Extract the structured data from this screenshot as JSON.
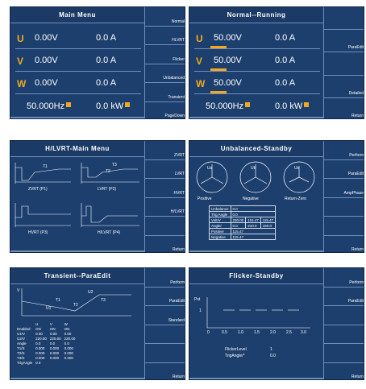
{
  "screens": {
    "main_menu": {
      "title": "Main Menu",
      "rows": [
        {
          "phase": "U",
          "voltage": "0.00V",
          "current": "0.0 A"
        },
        {
          "phase": "V",
          "voltage": "0.00V",
          "current": "0.0 A"
        },
        {
          "phase": "W",
          "voltage": "0.00V",
          "current": "0.0 A"
        }
      ],
      "frequency": "50.000Hz",
      "power": "0.0 kW",
      "side_buttons": [
        "Normal",
        "HLVRT",
        "Flicker",
        "Unbalanced",
        "Transient",
        "PageDown"
      ]
    },
    "normal_running": {
      "title": "Normal--Running",
      "rows": [
        {
          "phase": "U",
          "voltage": "50.00V",
          "current": "0.0 A"
        },
        {
          "phase": "V",
          "voltage": "50.00V",
          "current": "0.0 A"
        },
        {
          "phase": "W",
          "voltage": "50.00V",
          "current": "0.0 A"
        }
      ],
      "frequency": "50.000Hz",
      "power": "0.0 kW",
      "side_buttons": [
        "",
        "ParaEdit",
        "",
        "Detailed",
        "Return"
      ]
    },
    "hlvrt_main": {
      "title": "H/LVRT-Main Menu",
      "graph_labels": [
        "ZVRT (P1)",
        "LVRT (P2)",
        "HVRT (P3)",
        "H/LVRT (P4)"
      ],
      "t_labels": [
        "T1",
        "T2",
        "T3"
      ],
      "side_buttons": [
        "ZVRT",
        "LVRT",
        "HVRT",
        "H/LVRT",
        "",
        "Return"
      ]
    },
    "unbalanced": {
      "title": "Unbalanced-Standby",
      "circle_labels": [
        "Positive",
        "Negative",
        "Return-Zero"
      ],
      "phasor_labels": [
        "Ua",
        "Ub",
        "Uc"
      ],
      "table": [
        [
          "Unbalance",
          "0.0"
        ],
        [
          "Trig Angle",
          "0.0"
        ],
        [
          "Volt/V",
          "230.00",
          "115.47",
          "115.47"
        ],
        [
          "Angle/",
          "0.0",
          "210.0",
          "150.0"
        ],
        [
          "Positive",
          "115.47"
        ],
        [
          "Negative",
          "115.47"
        ]
      ],
      "side_buttons": [
        "Perform",
        "ParaEdit",
        "AmpPhase",
        "",
        "",
        "Return"
      ]
    },
    "transient": {
      "title": "Transient--ParaEdit",
      "graph_labels": [
        "U1",
        "U2",
        "T1",
        "T2",
        "T3",
        "V"
      ],
      "table_header": [
        "",
        "U",
        "V",
        "W"
      ],
      "table_rows": [
        [
          "Enabled",
          "ON",
          "ON",
          "ON"
        ],
        [
          "U1/V",
          "0.00",
          "0.00",
          "0.00"
        ],
        [
          "U2/V",
          "220.00",
          "220.00",
          "220.00"
        ],
        [
          "Angle",
          "0.0",
          "0.0",
          "0.0"
        ],
        [
          "T1/S",
          "0.000",
          "0.000",
          "0.000"
        ],
        [
          "T2/S",
          "0.000",
          "0.000",
          "0.000"
        ],
        [
          "T3/S",
          "0.000",
          "0.000",
          "0.000"
        ],
        [
          "TrigAngle",
          "0.0"
        ]
      ],
      "side_buttons": [
        "Perform",
        "ParaEdit",
        "Standard",
        "",
        "",
        "Return"
      ]
    },
    "flicker": {
      "title": "Flicker-Standby",
      "y_labels": [
        "Pst",
        "1"
      ],
      "x_ticks": [
        "0",
        "0.5",
        "1.0",
        "1.5",
        "2.0",
        "2.5",
        "3.0"
      ],
      "flicker_level_label": "FlickerLevel",
      "flicker_level": "1",
      "trig_label": "TrigAngle/°",
      "trig_value": "0.0",
      "side_buttons": [
        "Perform",
        "ParaEdit",
        "",
        "",
        "",
        "Return"
      ]
    }
  }
}
